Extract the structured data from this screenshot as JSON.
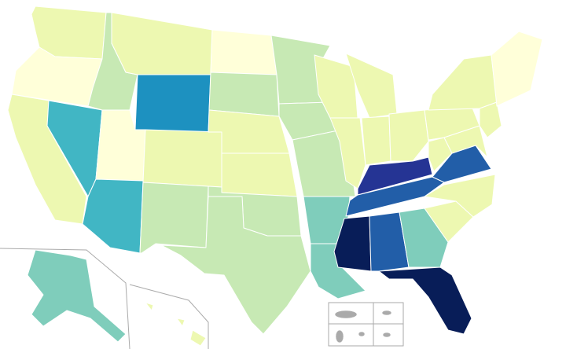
{
  "map": {
    "palette": [
      "#ffffd9",
      "#edf8b1",
      "#c7e9b4",
      "#7fcdbb",
      "#41b6c4",
      "#1d91c0",
      "#225ea8",
      "#253494",
      "#081d58"
    ]
  }
}
